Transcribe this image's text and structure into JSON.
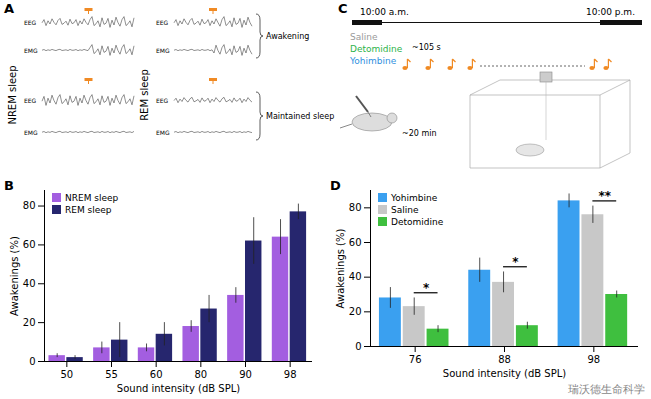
{
  "panel_A": {
    "label": "A",
    "rows": [
      "NREM sleep",
      "REM sleep"
    ],
    "signals": [
      "EEG",
      "EMG"
    ],
    "outcomes": [
      "Awakening",
      "Maintained sleep"
    ]
  },
  "panel_C": {
    "label": "C",
    "times": [
      "10:00 a.m.",
      "10:00 p.m."
    ],
    "drugs": [
      {
        "name": "Saline",
        "color": "#9a9a9a"
      },
      {
        "name": "Detomidine",
        "color": "#2db34a"
      },
      {
        "name": "Yohimbine",
        "color": "#2f8fe0"
      }
    ],
    "interval": "~105 s",
    "wait": "~20 min"
  },
  "watermark": "瑞沃德生命科学",
  "chart_data": [
    {
      "type": "bar",
      "panel": "B",
      "x_label": "Sound intensity (dB SPL)",
      "y_label": "Awakenings (%)",
      "categories": [
        50,
        55,
        60,
        80,
        90,
        98
      ],
      "series": [
        {
          "name": "NREM sleep",
          "color": "#a35ee0",
          "values": [
            3,
            7,
            7,
            18,
            34,
            64
          ],
          "errors": [
            1,
            3,
            2,
            3,
            4,
            9
          ]
        },
        {
          "name": "REM sleep",
          "color": "#26266e",
          "values": [
            2,
            11,
            14,
            27,
            62,
            77
          ],
          "errors": [
            1,
            9,
            6,
            7,
            12,
            4
          ]
        }
      ],
      "ylim": [
        0,
        88
      ],
      "yticks": [
        0,
        20,
        40,
        60,
        80
      ],
      "grid": false,
      "legend": "upper left"
    },
    {
      "type": "bar",
      "panel": "D",
      "x_label": "Sound intensity (dB SPL)",
      "y_label": "Awakenings (%)",
      "categories": [
        76,
        88,
        98
      ],
      "series": [
        {
          "name": "Yohimbine",
          "color": "#3aa0f0",
          "values": [
            28,
            44,
            84
          ],
          "errors": [
            6,
            7,
            4
          ]
        },
        {
          "name": "Saline",
          "color": "#c8c8c8",
          "values": [
            23,
            37,
            76
          ],
          "errors": [
            5,
            6,
            5
          ]
        },
        {
          "name": "Detomidine",
          "color": "#3fbf3f",
          "values": [
            10,
            12,
            30
          ],
          "errors": [
            2,
            2,
            2
          ]
        }
      ],
      "annotations": [
        {
          "category": 76,
          "between": [
            "Saline",
            "Detomidine"
          ],
          "text": "*"
        },
        {
          "category": 88,
          "between": [
            "Saline",
            "Detomidine"
          ],
          "text": "*"
        },
        {
          "category": 98,
          "between": [
            "Saline",
            "Detomidine"
          ],
          "text": "**"
        }
      ],
      "ylim": [
        0,
        90
      ],
      "yticks": [
        0,
        20,
        40,
        60,
        80
      ],
      "grid": false,
      "legend": "upper left"
    }
  ]
}
